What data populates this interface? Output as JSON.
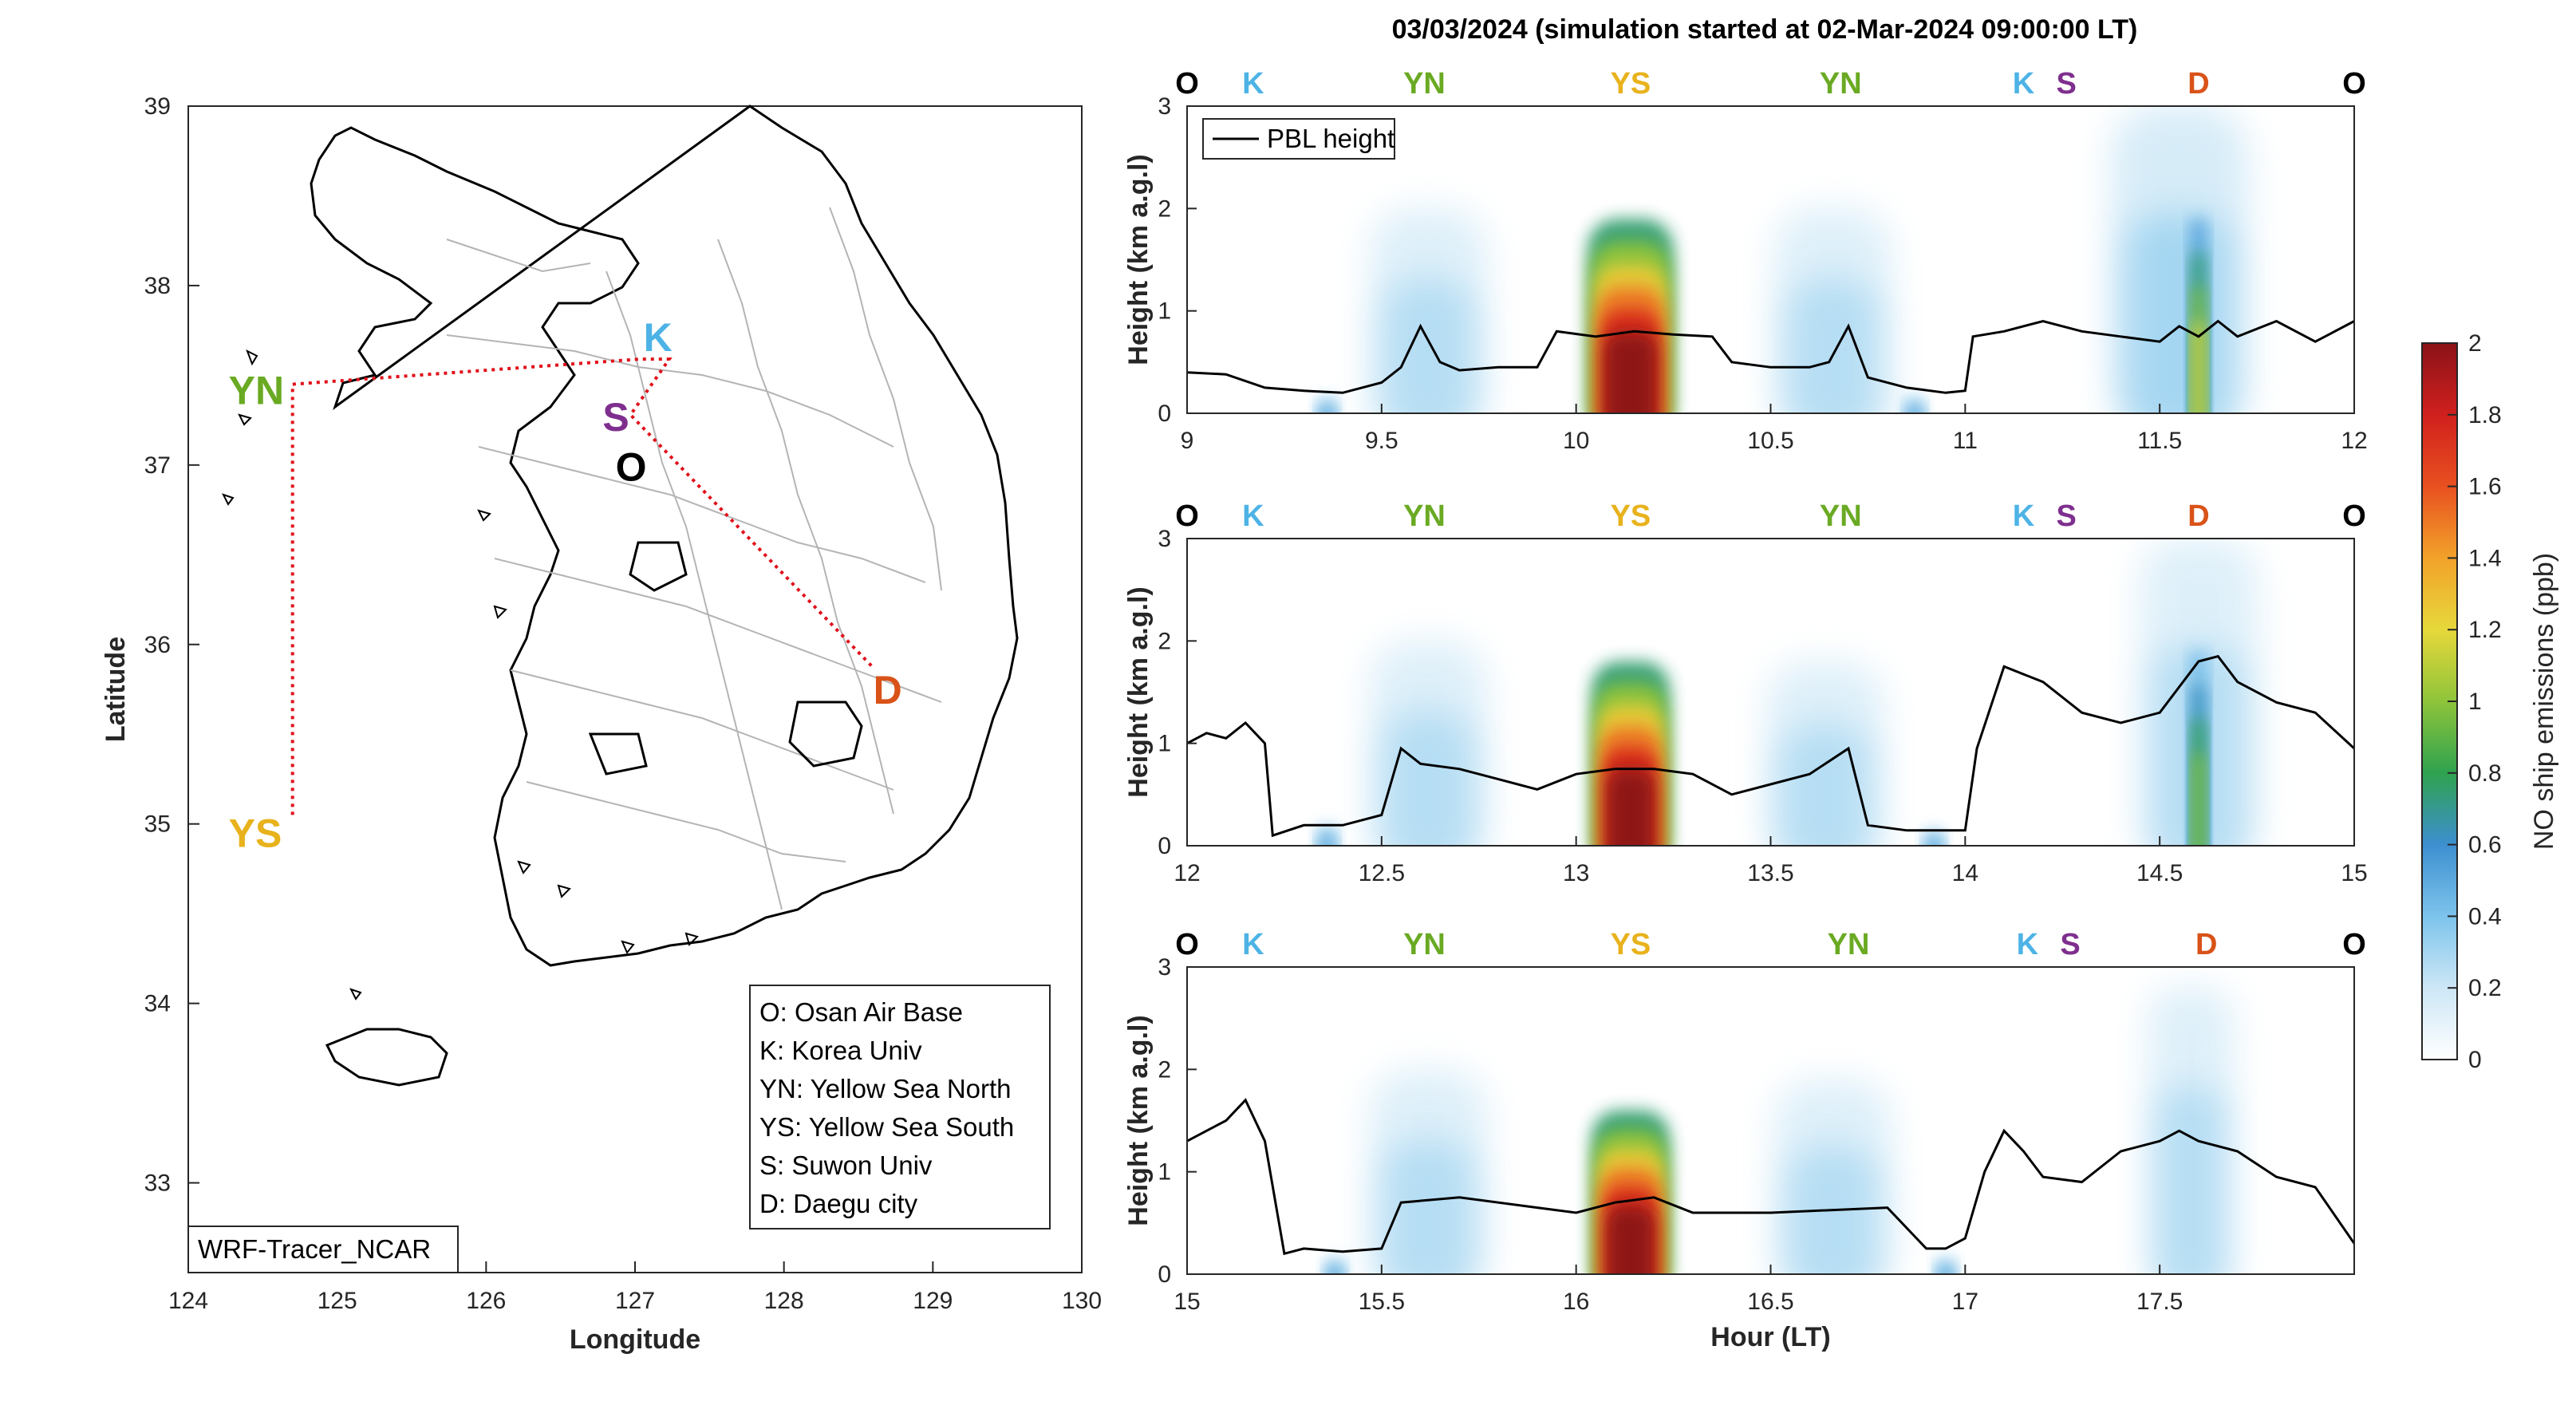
{
  "title": "03/03/2024 (simulation started at 02-Mar-2024 09:00:00 LT)",
  "colors": {
    "O": "#000000",
    "K": "#4db3e6",
    "YN": "#6aaa23",
    "YS": "#e8b21c",
    "S": "#7e2f8e",
    "D": "#d95319",
    "track": "#e0101a"
  },
  "map": {
    "xlabel": "Longitude",
    "ylabel": "Latitude",
    "xlim": [
      124,
      130
    ],
    "ylim": [
      32.5,
      39
    ],
    "xticks": [
      "124",
      "125",
      "126",
      "127",
      "128",
      "129",
      "130"
    ],
    "yticks": [
      "33",
      "34",
      "35",
      "36",
      "37",
      "38",
      "39"
    ],
    "credit": "WRF-Tracer_NCAR",
    "sites": [
      {
        "id": "O",
        "label": "O",
        "lon": 127.03,
        "lat": 37.09
      },
      {
        "id": "K",
        "label": "K",
        "lon": 127.03,
        "lat": 37.59
      },
      {
        "id": "YN",
        "label": "YN",
        "lon": 124.7,
        "lat": 37.45
      },
      {
        "id": "YS",
        "label": "YS",
        "lon": 124.7,
        "lat": 35.05
      },
      {
        "id": "S",
        "label": "S",
        "lon": 126.97,
        "lat": 37.28
      },
      {
        "id": "D",
        "label": "D",
        "lon": 128.6,
        "lat": 35.87
      }
    ],
    "legend": [
      "O: Osan Air Base",
      "K: Korea Univ",
      "YN: Yellow Sea North",
      "YS: Yellow Sea South",
      "S: Suwon Univ",
      "D: Daegu city"
    ]
  },
  "chart_data": [
    {
      "type": "heatmap",
      "xlabel": "",
      "ylabel": "Height (km a.g.l)",
      "xlim": [
        9,
        12
      ],
      "ylim": [
        0,
        3
      ],
      "xticks": [
        "9",
        "9.5",
        "10",
        "10.5",
        "11",
        "11.5",
        "12"
      ],
      "yticks": [
        "0",
        "1",
        "2",
        "3"
      ],
      "legend": "PBL height",
      "legend_position": "top-left",
      "sites": [
        {
          "id": "O",
          "label": "O",
          "x": 9.0
        },
        {
          "id": "K",
          "label": "K",
          "x": 9.17
        },
        {
          "id": "YN",
          "label": "YN",
          "x": 9.61
        },
        {
          "id": "YS",
          "label": "YS",
          "x": 10.14
        },
        {
          "id": "YN",
          "label": "YN",
          "x": 10.68
        },
        {
          "id": "K",
          "label": "K",
          "x": 11.15
        },
        {
          "id": "S",
          "label": "S",
          "x": 11.26
        },
        {
          "id": "D",
          "label": "D",
          "x": 11.6
        },
        {
          "id": "O",
          "label": "O",
          "x": 12.0
        }
      ],
      "pbl": {
        "x": [
          9.0,
          9.1,
          9.2,
          9.3,
          9.4,
          9.5,
          9.55,
          9.6,
          9.65,
          9.7,
          9.8,
          9.9,
          9.95,
          10.05,
          10.15,
          10.25,
          10.35,
          10.4,
          10.5,
          10.6,
          10.65,
          10.7,
          10.75,
          10.85,
          10.95,
          11.0,
          11.02,
          11.1,
          11.2,
          11.3,
          11.4,
          11.5,
          11.55,
          11.6,
          11.65,
          11.7,
          11.8,
          11.9,
          12.0
        ],
        "y": [
          0.4,
          0.38,
          0.25,
          0.22,
          0.2,
          0.3,
          0.45,
          0.85,
          0.5,
          0.42,
          0.45,
          0.45,
          0.8,
          0.75,
          0.8,
          0.77,
          0.75,
          0.5,
          0.45,
          0.45,
          0.5,
          0.85,
          0.35,
          0.25,
          0.2,
          0.22,
          0.75,
          0.8,
          0.9,
          0.8,
          0.75,
          0.7,
          0.85,
          0.75,
          0.9,
          0.75,
          0.9,
          0.7,
          0.9
        ]
      },
      "plumes": [
        {
          "x": 10.14,
          "w": 0.22,
          "h": 1.9,
          "peak": 2.0
        },
        {
          "x": 9.62,
          "w": 0.3,
          "h": 2.0,
          "peak": 0.3
        },
        {
          "x": 10.66,
          "w": 0.3,
          "h": 2.0,
          "peak": 0.3
        },
        {
          "x": 11.6,
          "w": 0.04,
          "h": 1.9,
          "peak": 1.2
        },
        {
          "x": 11.55,
          "w": 0.35,
          "h": 3.0,
          "peak": 0.35
        },
        {
          "x": 9.36,
          "w": 0.05,
          "h": 0.15,
          "peak": 0.5
        },
        {
          "x": 10.87,
          "w": 0.05,
          "h": 0.15,
          "peak": 0.5
        }
      ]
    },
    {
      "type": "heatmap",
      "xlabel": "",
      "ylabel": "Height (km a.g.l)",
      "xlim": [
        12,
        15
      ],
      "ylim": [
        0,
        3
      ],
      "xticks": [
        "12",
        "12.5",
        "13",
        "13.5",
        "14",
        "14.5",
        "15"
      ],
      "yticks": [
        "0",
        "1",
        "2",
        "3"
      ],
      "sites": [
        {
          "id": "O",
          "label": "O",
          "x": 12.0
        },
        {
          "id": "K",
          "label": "K",
          "x": 12.17
        },
        {
          "id": "YN",
          "label": "YN",
          "x": 12.61
        },
        {
          "id": "YS",
          "label": "YS",
          "x": 13.14
        },
        {
          "id": "YN",
          "label": "YN",
          "x": 13.68
        },
        {
          "id": "K",
          "label": "K",
          "x": 14.15
        },
        {
          "id": "S",
          "label": "S",
          "x": 14.26
        },
        {
          "id": "D",
          "label": "D",
          "x": 14.6
        },
        {
          "id": "O",
          "label": "O",
          "x": 15.0
        }
      ],
      "pbl": {
        "x": [
          12.0,
          12.05,
          12.1,
          12.15,
          12.2,
          12.22,
          12.3,
          12.4,
          12.5,
          12.55,
          12.6,
          12.7,
          12.8,
          12.9,
          13.0,
          13.1,
          13.2,
          13.3,
          13.4,
          13.5,
          13.6,
          13.7,
          13.75,
          13.85,
          13.95,
          14.0,
          14.03,
          14.1,
          14.2,
          14.3,
          14.4,
          14.5,
          14.6,
          14.65,
          14.7,
          14.8,
          14.9,
          15.0
        ],
        "y": [
          1.0,
          1.1,
          1.05,
          1.2,
          1.0,
          0.1,
          0.2,
          0.2,
          0.3,
          0.95,
          0.8,
          0.75,
          0.65,
          0.55,
          0.7,
          0.75,
          0.75,
          0.7,
          0.5,
          0.6,
          0.7,
          0.95,
          0.2,
          0.15,
          0.15,
          0.15,
          0.95,
          1.75,
          1.6,
          1.3,
          1.2,
          1.3,
          1.8,
          1.85,
          1.6,
          1.4,
          1.3,
          0.95
        ]
      },
      "plumes": [
        {
          "x": 13.14,
          "w": 0.2,
          "h": 1.8,
          "peak": 2.0
        },
        {
          "x": 12.62,
          "w": 0.3,
          "h": 2.0,
          "peak": 0.3
        },
        {
          "x": 13.64,
          "w": 0.3,
          "h": 1.8,
          "peak": 0.3
        },
        {
          "x": 14.6,
          "w": 0.04,
          "h": 1.9,
          "peak": 1.0
        },
        {
          "x": 14.6,
          "w": 0.3,
          "h": 3.0,
          "peak": 0.3
        },
        {
          "x": 12.36,
          "w": 0.05,
          "h": 0.2,
          "peak": 0.5
        },
        {
          "x": 13.92,
          "w": 0.05,
          "h": 0.15,
          "peak": 0.5
        }
      ]
    },
    {
      "type": "heatmap",
      "xlabel": "Hour (LT)",
      "ylabel": "Height (km a.g.l)",
      "xlim": [
        15,
        18
      ],
      "ylim": [
        0,
        3
      ],
      "xticks": [
        "15",
        "15.5",
        "16",
        "16.5",
        "17",
        "17.5"
      ],
      "yticks": [
        "0",
        "1",
        "2",
        "3"
      ],
      "sites": [
        {
          "id": "O",
          "label": "O",
          "x": 15.0
        },
        {
          "id": "K",
          "label": "K",
          "x": 15.17
        },
        {
          "id": "YN",
          "label": "YN",
          "x": 15.61
        },
        {
          "id": "YS",
          "label": "YS",
          "x": 16.14
        },
        {
          "id": "YN",
          "label": "YN",
          "x": 16.7
        },
        {
          "id": "K",
          "label": "K",
          "x": 17.16
        },
        {
          "id": "S",
          "label": "S",
          "x": 17.27
        },
        {
          "id": "D",
          "label": "D",
          "x": 17.62
        },
        {
          "id": "O",
          "label": "O",
          "x": 18.0
        }
      ],
      "pbl": {
        "x": [
          15.0,
          15.05,
          15.1,
          15.15,
          15.2,
          15.25,
          15.3,
          15.4,
          15.5,
          15.55,
          15.7,
          15.9,
          16.0,
          16.1,
          16.2,
          16.3,
          16.5,
          16.8,
          16.9,
          16.95,
          17.0,
          17.05,
          17.1,
          17.15,
          17.2,
          17.3,
          17.4,
          17.5,
          17.55,
          17.6,
          17.7,
          17.8,
          17.9,
          18.0
        ],
        "y": [
          1.3,
          1.4,
          1.5,
          1.7,
          1.3,
          0.2,
          0.25,
          0.22,
          0.25,
          0.7,
          0.75,
          0.65,
          0.6,
          0.7,
          0.75,
          0.6,
          0.6,
          0.65,
          0.25,
          0.25,
          0.35,
          1.0,
          1.4,
          1.2,
          0.95,
          0.9,
          1.2,
          1.3,
          1.4,
          1.3,
          1.2,
          0.95,
          0.85,
          0.3
        ]
      },
      "plumes": [
        {
          "x": 16.14,
          "w": 0.2,
          "h": 1.6,
          "peak": 2.0
        },
        {
          "x": 15.62,
          "w": 0.3,
          "h": 2.0,
          "peak": 0.3
        },
        {
          "x": 16.66,
          "w": 0.3,
          "h": 1.9,
          "peak": 0.3
        },
        {
          "x": 17.58,
          "w": 0.22,
          "h": 2.8,
          "peak": 0.3
        },
        {
          "x": 15.38,
          "w": 0.05,
          "h": 0.15,
          "peak": 0.5
        },
        {
          "x": 16.95,
          "w": 0.05,
          "h": 0.15,
          "peak": 0.5
        }
      ]
    }
  ],
  "colorbar": {
    "label": "NO ship emissions (ppb)",
    "range": [
      0,
      2
    ],
    "ticks": [
      "0",
      "0.2",
      "0.4",
      "0.6",
      "0.8",
      "1",
      "1.2",
      "1.4",
      "1.6",
      "1.8",
      "2"
    ],
    "colors": [
      "#ffffff",
      "#cde7f6",
      "#7dc4ec",
      "#3d8fd0",
      "#2fa24f",
      "#8ec43a",
      "#e6d83b",
      "#f2a22a",
      "#e85020",
      "#d0201e",
      "#8b1218"
    ]
  }
}
